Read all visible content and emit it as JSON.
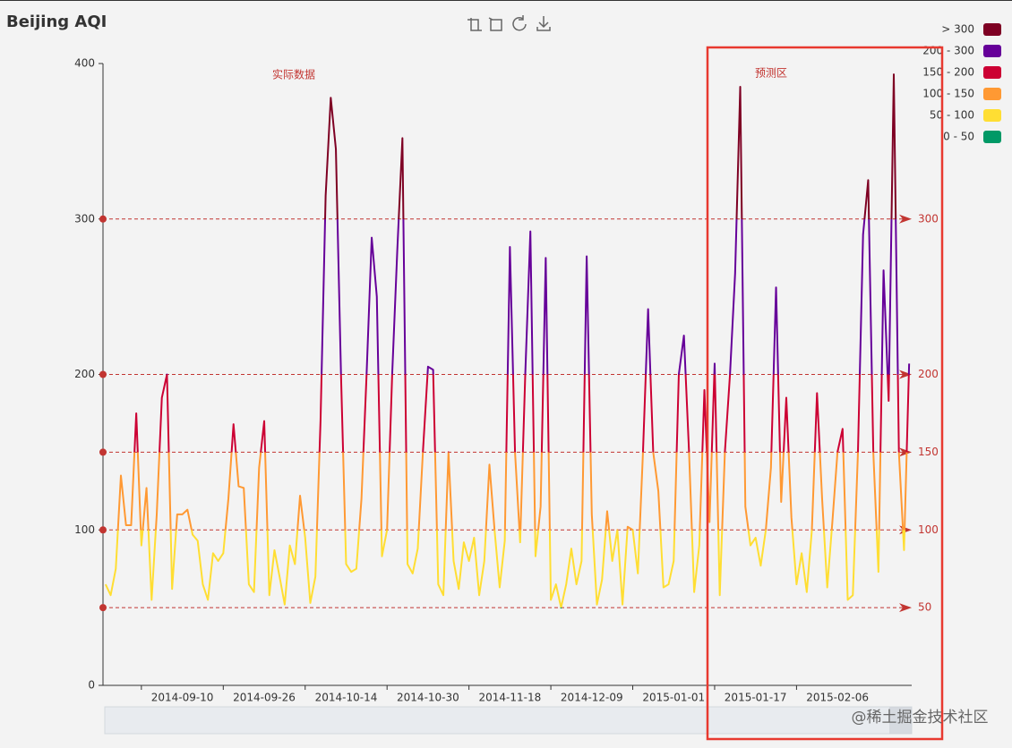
{
  "chart_data": {
    "type": "line",
    "title": "Beijing AQI",
    "categories": [
      null,
      null,
      null,
      null,
      null,
      null,
      null,
      null,
      null,
      null,
      null,
      null,
      null,
      null,
      null,
      "2014-09-10",
      null,
      null,
      null,
      null,
      null,
      null,
      null,
      null,
      null,
      null,
      null,
      null,
      null,
      null,
      null,
      "2014-09-26",
      null,
      null,
      null,
      null,
      null,
      null,
      null,
      null,
      null,
      null,
      null,
      null,
      null,
      null,
      null,
      "2014-10-14",
      null,
      null,
      null,
      null,
      null,
      null,
      null,
      null,
      null,
      null,
      null,
      null,
      null,
      null,
      null,
      "2014-10-30",
      null,
      null,
      null,
      null,
      null,
      null,
      null,
      null,
      null,
      null,
      null,
      null,
      null,
      null,
      null,
      "2014-11-18",
      null,
      null,
      null,
      null,
      null,
      null,
      null,
      null,
      null,
      null,
      null,
      null,
      null,
      null,
      null,
      "2014-12-09",
      null,
      null,
      null,
      null,
      null,
      null,
      null,
      null,
      null,
      null,
      null,
      null,
      null,
      null,
      null,
      "2015-01-01",
      null,
      null,
      null,
      null,
      null,
      null,
      null,
      null,
      null,
      null,
      null,
      null,
      null,
      null,
      null,
      "2015-01-17",
      null,
      null,
      null,
      null,
      null,
      null,
      null,
      null,
      null,
      null,
      null,
      null,
      null,
      null,
      null,
      "2015-02-06",
      null,
      null,
      null,
      null,
      null,
      null,
      null,
      null,
      null,
      null,
      null,
      null,
      null,
      null
    ],
    "values": [
      65,
      58,
      75,
      135,
      103,
      103,
      175,
      90,
      127,
      55,
      110,
      185,
      200,
      62,
      110,
      110,
      113,
      97,
      93,
      65,
      55,
      85,
      80,
      85,
      120,
      168,
      128,
      127,
      65,
      60,
      140,
      170,
      58,
      87,
      70,
      52,
      90,
      78,
      122,
      95,
      53,
      70,
      170,
      315,
      378,
      345,
      200,
      78,
      73,
      75,
      120,
      200,
      288,
      250,
      83,
      100,
      200,
      280,
      352,
      78,
      72,
      88,
      150,
      205,
      203,
      65,
      58,
      150,
      80,
      62,
      92,
      80,
      95,
      58,
      80,
      142,
      100,
      63,
      93,
      282,
      150,
      92,
      200,
      292,
      83,
      115,
      275,
      55,
      65,
      50,
      65,
      88,
      65,
      80,
      276,
      110,
      52,
      68,
      112,
      80,
      100,
      52,
      102,
      100,
      72,
      150,
      242,
      150,
      125,
      63,
      65,
      80,
      200,
      225,
      150,
      60,
      90,
      190,
      105,
      207,
      58,
      150,
      200,
      265,
      385,
      115,
      90,
      95,
      77,
      100,
      140,
      256,
      118,
      185,
      108,
      65,
      85,
      60,
      100,
      188,
      120,
      63,
      105,
      150,
      165,
      55,
      58,
      150,
      290,
      325,
      150,
      73,
      267,
      183,
      393,
      150,
      87,
      207
    ],
    "ylim": [
      0,
      400
    ],
    "yticks": [
      0,
      100,
      200,
      300,
      400
    ],
    "visual_map": [
      {
        "label": "> 300",
        "min": 300,
        "max": 400,
        "color": "#7e0023"
      },
      {
        "label": "200 - 300",
        "min": 200,
        "max": 300,
        "color": "#660099"
      },
      {
        "label": "150 - 200",
        "min": 150,
        "max": 200,
        "color": "#cc0033"
      },
      {
        "label": "100 - 150",
        "min": 100,
        "max": 150,
        "color": "#ff9933"
      },
      {
        "label": "50 - 100",
        "min": 50,
        "max": 100,
        "color": "#ffde33"
      },
      {
        "label": "0 - 50",
        "min": 0,
        "max": 50,
        "color": "#009966"
      }
    ],
    "mark_lines": [
      50,
      100,
      150,
      200,
      300
    ],
    "mark_line_color": "#c23531",
    "annotations": [
      "实际数据",
      "预测区"
    ],
    "watermark": "@稀土掘金技术社区"
  }
}
